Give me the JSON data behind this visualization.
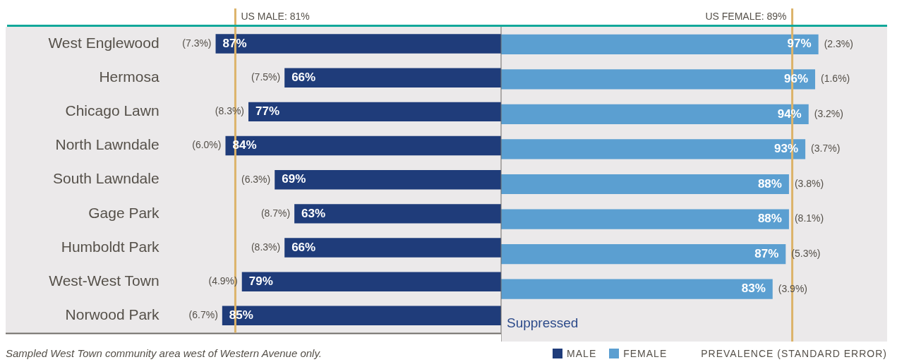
{
  "chart_data": [
    {
      "type": "bar",
      "orientation": "horizontal",
      "categories": [
        "West Englewood",
        "Hermosa",
        "Chicago Lawn",
        "North Lawndale",
        "South Lawndale",
        "Gage Park",
        "Humboldt Park",
        "West-West Town",
        "Norwood Park"
      ],
      "series": [
        {
          "name": "MALE",
          "color": "#1f3c7a",
          "values": [
            87,
            66,
            77,
            84,
            69,
            63,
            66,
            79,
            85
          ],
          "value_labels": [
            "87%",
            "66%",
            "77%",
            "84%",
            "69%",
            "63%",
            "66%",
            "79%",
            "85%"
          ]
        }
      ],
      "xlim": [
        151,
        0
      ],
      "tick_labels": "y",
      "grid": false,
      "legend": "bottom",
      "ref_lines": [
        {
          "axis": "x",
          "value": 81,
          "label": "US MALE: 81%",
          "color": "#dcb36a"
        }
      ],
      "annotations": [
        {
          "text": "(7.3%)",
          "x": 87,
          "y": "West Englewood"
        },
        {
          "text": "(7.5%)",
          "x": 66,
          "y": "Hermosa"
        },
        {
          "text": "(8.3%)",
          "x": 77,
          "y": "Chicago Lawn"
        },
        {
          "text": "(6.0%)",
          "x": 84,
          "y": "North Lawndale"
        },
        {
          "text": "(6.3%)",
          "x": 69,
          "y": "South Lawndale"
        },
        {
          "text": "(8.7%)",
          "x": 63,
          "y": "Gage Park"
        },
        {
          "text": "(8.3%)",
          "x": 66,
          "y": "Humboldt Park"
        },
        {
          "text": "(4.9%)",
          "x": 79,
          "y": "West-West Town"
        },
        {
          "text": "(6.7%)",
          "x": 85,
          "y": "Norwood Park"
        },
        "Sampled West Town community area west of Western Avenue only."
      ]
    },
    {
      "type": "bar",
      "orientation": "horizontal",
      "categories": [
        "West Englewood",
        "Hermosa",
        "Chicago Lawn",
        "North Lawndale",
        "South Lawndale",
        "Gage Park",
        "Humboldt Park",
        "West-West Town",
        "Norwood Park"
      ],
      "series": [
        {
          "name": "FEMALE",
          "color": "#5b9fd1",
          "values": [
            97,
            96,
            94,
            93,
            88,
            88,
            87,
            83,
            null
          ],
          "value_labels": [
            "97%",
            "96%",
            "94%",
            "93%",
            "88%",
            "88%",
            "87%",
            "83%",
            "Suppressed"
          ]
        }
      ],
      "xlim": [
        0,
        118
      ],
      "tick_labels": false,
      "grid": false,
      "legend": "bottom",
      "ref_lines": [
        {
          "axis": "x",
          "value": 89,
          "label": "US FEMALE: 89%",
          "color": "#dcb36a"
        }
      ],
      "annotations": [
        {
          "text": "(2.3%)",
          "x": 97,
          "y": "West Englewood"
        },
        {
          "text": "(1.6%)",
          "x": 96,
          "y": "Hermosa"
        },
        {
          "text": "(3.2%)",
          "x": 94,
          "y": "Chicago Lawn"
        },
        {
          "text": "(3.7%)",
          "x": 93,
          "y": "North Lawndale"
        },
        {
          "text": "(3.8%)",
          "x": 88,
          "y": "South Lawndale"
        },
        {
          "text": "(8.1%)",
          "x": 88,
          "y": "Gage Park"
        },
        {
          "text": "(5.3%)",
          "x": 87,
          "y": "Humboldt Park"
        },
        {
          "text": "(3.9%)",
          "x": 83,
          "y": "West-West Town"
        },
        "PREVALENCE (STANDARD ERROR)"
      ]
    }
  ]
}
